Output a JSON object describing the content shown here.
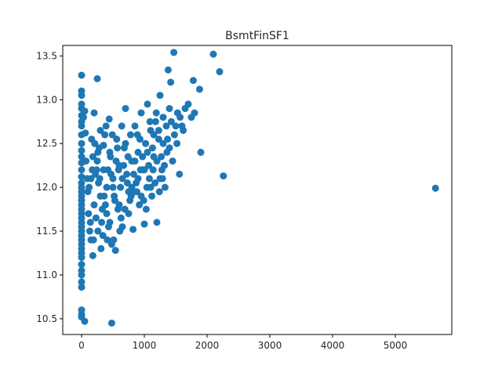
{
  "chart_data": {
    "type": "scatter",
    "title": "BsmtFinSF1",
    "xlabel": "",
    "ylabel": "",
    "xlim": [
      -300,
      5900
    ],
    "ylim": [
      10.32,
      13.62
    ],
    "x_ticks": [
      0,
      1000,
      2000,
      3000,
      4000,
      5000
    ],
    "x_tick_labels": [
      "0",
      "1000",
      "2000",
      "3000",
      "4000",
      "5000"
    ],
    "y_ticks": [
      10.5,
      11.0,
      11.5,
      12.0,
      12.5,
      13.0,
      13.5
    ],
    "y_tick_labels": [
      "10.5",
      "11.0",
      "11.5",
      "12.0",
      "12.5",
      "13.0",
      "13.5"
    ],
    "grid": false,
    "legend": "none",
    "point_color": "#1f77b4",
    "series": [
      {
        "points": [
          [
            0,
            13.28
          ],
          [
            0,
            13.1
          ],
          [
            0,
            13.05
          ],
          [
            0,
            12.95
          ],
          [
            0,
            12.9
          ],
          [
            0,
            12.82
          ],
          [
            0,
            12.75
          ],
          [
            0,
            12.7
          ],
          [
            0,
            12.6
          ],
          [
            0,
            12.5
          ],
          [
            0,
            12.42
          ],
          [
            0,
            12.35
          ],
          [
            0,
            12.28
          ],
          [
            0,
            12.2
          ],
          [
            0,
            12.12
          ],
          [
            0,
            12.05
          ],
          [
            0,
            12.0
          ],
          [
            0,
            11.95
          ],
          [
            0,
            11.9
          ],
          [
            0,
            11.85
          ],
          [
            0,
            11.8
          ],
          [
            0,
            11.75
          ],
          [
            0,
            11.7
          ],
          [
            0,
            11.65
          ],
          [
            0,
            11.6
          ],
          [
            0,
            11.55
          ],
          [
            0,
            11.5
          ],
          [
            0,
            11.45
          ],
          [
            0,
            11.4
          ],
          [
            0,
            11.35
          ],
          [
            0,
            11.3
          ],
          [
            0,
            11.25
          ],
          [
            0,
            11.2
          ],
          [
            0,
            11.12
          ],
          [
            0,
            11.05
          ],
          [
            0,
            11.0
          ],
          [
            0,
            10.92
          ],
          [
            0,
            10.86
          ],
          [
            0,
            10.6
          ],
          [
            0,
            10.55
          ],
          [
            0,
            10.52
          ],
          [
            50,
            10.47
          ],
          [
            480,
            10.45
          ],
          [
            30,
            12.8
          ],
          [
            50,
            12.87
          ],
          [
            60,
            12.62
          ],
          [
            70,
            12.3
          ],
          [
            90,
            12.1
          ],
          [
            100,
            11.95
          ],
          [
            110,
            11.7
          ],
          [
            130,
            11.5
          ],
          [
            150,
            11.4
          ],
          [
            160,
            12.55
          ],
          [
            180,
            11.22
          ],
          [
            200,
            12.85
          ],
          [
            220,
            12.15
          ],
          [
            250,
            13.24
          ],
          [
            260,
            12.4
          ],
          [
            280,
            12.45
          ],
          [
            300,
            12.65
          ],
          [
            320,
            11.6
          ],
          [
            340,
            11.45
          ],
          [
            350,
            12.48
          ],
          [
            380,
            11.8
          ],
          [
            400,
            12.0
          ],
          [
            420,
            12.2
          ],
          [
            440,
            12.78
          ],
          [
            460,
            12.35
          ],
          [
            480,
            11.35
          ],
          [
            500,
            12.1
          ],
          [
            520,
            11.9
          ],
          [
            540,
            11.28
          ],
          [
            560,
            12.55
          ],
          [
            580,
            11.75
          ],
          [
            600,
            12.25
          ],
          [
            620,
            12.0
          ],
          [
            650,
            11.55
          ],
          [
            680,
            12.45
          ],
          [
            700,
            12.9
          ],
          [
            720,
            12.15
          ],
          [
            750,
            11.95
          ],
          [
            780,
            12.6
          ],
          [
            800,
            12.3
          ],
          [
            820,
            11.52
          ],
          [
            850,
            12.7
          ],
          [
            870,
            12.05
          ],
          [
            900,
            12.4
          ],
          [
            920,
            11.8
          ],
          [
            950,
            12.85
          ],
          [
            980,
            12.2
          ],
          [
            1000,
            11.58
          ],
          [
            1020,
            12.5
          ],
          [
            1050,
            12.95
          ],
          [
            1080,
            12.1
          ],
          [
            1100,
            12.65
          ],
          [
            1120,
            11.9
          ],
          [
            1150,
            12.35
          ],
          [
            1180,
            12.75
          ],
          [
            1200,
            11.6
          ],
          [
            1230,
            12.55
          ],
          [
            1250,
            13.05
          ],
          [
            1280,
            12.2
          ],
          [
            1300,
            12.8
          ],
          [
            1330,
            12.0
          ],
          [
            1360,
            12.4
          ],
          [
            1380,
            13.34
          ],
          [
            1400,
            12.9
          ],
          [
            1420,
            13.2
          ],
          [
            1450,
            12.3
          ],
          [
            1470,
            13.54
          ],
          [
            1500,
            12.7
          ],
          [
            1530,
            12.85
          ],
          [
            1560,
            12.15
          ],
          [
            1600,
            12.7
          ],
          [
            1650,
            12.9
          ],
          [
            1700,
            12.95
          ],
          [
            1750,
            12.8
          ],
          [
            1780,
            13.22
          ],
          [
            1800,
            12.85
          ],
          [
            1880,
            13.12
          ],
          [
            1900,
            12.4
          ],
          [
            2100,
            13.52
          ],
          [
            2200,
            13.32
          ],
          [
            2260,
            12.13
          ],
          [
            5640,
            11.99
          ],
          [
            150,
            12.1
          ],
          [
            200,
            11.8
          ],
          [
            250,
            12.3
          ],
          [
            300,
            11.9
          ],
          [
            350,
            12.2
          ],
          [
            400,
            11.7
          ],
          [
            450,
            12.4
          ],
          [
            500,
            12.0
          ],
          [
            550,
            12.3
          ],
          [
            600,
            11.8
          ],
          [
            650,
            12.1
          ],
          [
            700,
            12.5
          ],
          [
            750,
            11.7
          ],
          [
            800,
            12.0
          ],
          [
            850,
            12.3
          ],
          [
            900,
            12.1
          ],
          [
            950,
            11.9
          ],
          [
            1000,
            12.2
          ],
          [
            1050,
            12.4
          ],
          [
            1100,
            12.0
          ],
          [
            1150,
            12.6
          ],
          [
            1200,
            12.3
          ],
          [
            1250,
            12.1
          ],
          [
            1300,
            12.5
          ],
          [
            1350,
            12.7
          ],
          [
            1400,
            12.45
          ],
          [
            180,
            12.35
          ],
          [
            230,
            11.65
          ],
          [
            270,
            12.05
          ],
          [
            330,
            11.75
          ],
          [
            370,
            12.6
          ],
          [
            430,
            11.55
          ],
          [
            470,
            12.15
          ],
          [
            530,
            11.85
          ],
          [
            570,
            12.45
          ],
          [
            630,
            11.65
          ],
          [
            670,
            12.25
          ],
          [
            730,
            12.05
          ],
          [
            770,
            11.85
          ],
          [
            830,
            12.15
          ],
          [
            880,
            11.95
          ],
          [
            930,
            12.55
          ],
          [
            970,
            12.35
          ],
          [
            1030,
            11.75
          ],
          [
            1070,
            12.25
          ],
          [
            1130,
            12.45
          ],
          [
            1170,
            12.05
          ],
          [
            1230,
            12.65
          ],
          [
            1270,
            12.35
          ],
          [
            1320,
            12.25
          ],
          [
            1370,
            12.55
          ],
          [
            1430,
            12.75
          ],
          [
            1480,
            12.6
          ],
          [
            1520,
            12.5
          ],
          [
            1570,
            12.8
          ],
          [
            1620,
            12.65
          ],
          [
            120,
            12.0
          ],
          [
            140,
            11.6
          ],
          [
            170,
            12.2
          ],
          [
            190,
            11.4
          ],
          [
            210,
            12.5
          ],
          [
            240,
            12.2
          ],
          [
            260,
            11.5
          ],
          [
            290,
            12.1
          ],
          [
            310,
            11.3
          ],
          [
            360,
            11.9
          ],
          [
            390,
            12.7
          ],
          [
            410,
            11.4
          ],
          [
            450,
            11.6
          ],
          [
            490,
            12.6
          ],
          [
            510,
            11.4
          ],
          [
            590,
            12.2
          ],
          [
            610,
            11.5
          ],
          [
            640,
            12.7
          ],
          [
            690,
            11.75
          ],
          [
            740,
            12.35
          ],
          [
            790,
            11.9
          ],
          [
            840,
            11.95
          ],
          [
            890,
            12.6
          ],
          [
            940,
            12.2
          ],
          [
            990,
            11.85
          ],
          [
            1040,
            12.0
          ],
          [
            1090,
            12.75
          ],
          [
            1140,
            12.2
          ],
          [
            1190,
            12.85
          ],
          [
            1240,
            11.95
          ],
          [
            1290,
            12.1
          ]
        ]
      }
    ]
  }
}
